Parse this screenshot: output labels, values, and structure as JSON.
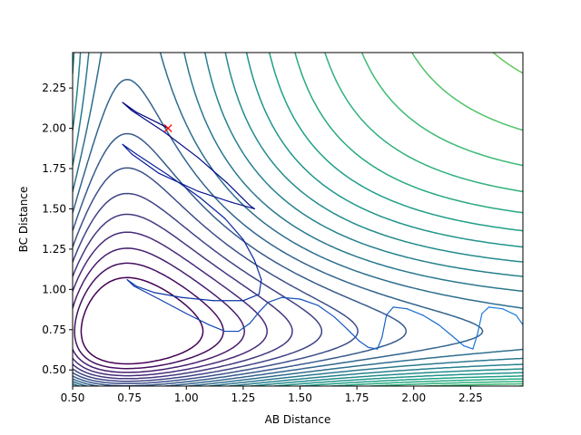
{
  "chart_data": {
    "type": "contour",
    "xlabel": "AB Distance",
    "ylabel": "BC Distance",
    "xlim": [
      0.5,
      2.48
    ],
    "ylim": [
      0.4,
      2.47
    ],
    "xticks": [
      0.5,
      0.75,
      1.0,
      1.25,
      1.5,
      1.75,
      2.0,
      2.25
    ],
    "xtick_labels": [
      "0.50",
      "0.75",
      "1.00",
      "1.25",
      "1.50",
      "1.75",
      "2.00",
      "2.25"
    ],
    "yticks": [
      0.5,
      0.75,
      1.0,
      1.25,
      1.5,
      1.75,
      2.0,
      2.25
    ],
    "ytick_labels": [
      "0.50",
      "0.75",
      "1.00",
      "1.25",
      "1.50",
      "1.75",
      "2.00",
      "2.25"
    ],
    "grid": false,
    "legend": "none",
    "colormap": "viridis",
    "contour_levels": 26,
    "potential_minimum": {
      "x": 0.74,
      "y": 0.74
    },
    "start_marker": {
      "x": 0.92,
      "y": 2.0,
      "symbol": "x",
      "color": "#ff0000"
    },
    "trajectory": {
      "color_start": "#00007f",
      "color_end": "#1e7fe0",
      "points": [
        [
          0.92,
          2.0
        ],
        [
          0.88,
          2.03
        ],
        [
          0.78,
          2.1
        ],
        [
          0.72,
          2.16
        ],
        [
          0.76,
          2.11
        ],
        [
          0.9,
          1.98
        ],
        [
          1.05,
          1.82
        ],
        [
          1.18,
          1.66
        ],
        [
          1.28,
          1.52
        ],
        [
          1.3,
          1.5
        ],
        [
          1.2,
          1.54
        ],
        [
          1.05,
          1.61
        ],
        [
          0.88,
          1.72
        ],
        [
          0.76,
          1.84
        ],
        [
          0.72,
          1.9
        ],
        [
          0.78,
          1.84
        ],
        [
          0.92,
          1.71
        ],
        [
          1.06,
          1.57
        ],
        [
          1.17,
          1.44
        ],
        [
          1.25,
          1.31
        ],
        [
          1.3,
          1.18
        ],
        [
          1.33,
          1.06
        ],
        [
          1.32,
          0.97
        ],
        [
          1.25,
          0.93
        ],
        [
          1.12,
          0.93
        ],
        [
          0.98,
          0.95
        ],
        [
          0.86,
          0.98
        ],
        [
          0.78,
          1.02
        ],
        [
          0.74,
          1.06
        ],
        [
          0.77,
          1.02
        ],
        [
          0.88,
          0.94
        ],
        [
          1.0,
          0.85
        ],
        [
          1.1,
          0.78
        ],
        [
          1.17,
          0.74
        ],
        [
          1.23,
          0.74
        ],
        [
          1.28,
          0.79
        ],
        [
          1.32,
          0.86
        ],
        [
          1.36,
          0.92
        ],
        [
          1.42,
          0.95
        ],
        [
          1.5,
          0.94
        ],
        [
          1.58,
          0.9
        ],
        [
          1.65,
          0.83
        ],
        [
          1.71,
          0.75
        ],
        [
          1.76,
          0.68
        ],
        [
          1.8,
          0.64
        ],
        [
          1.84,
          0.63
        ],
        [
          1.86,
          0.7
        ],
        [
          1.88,
          0.84
        ],
        [
          1.91,
          0.89
        ],
        [
          1.97,
          0.88
        ],
        [
          2.04,
          0.84
        ],
        [
          2.11,
          0.78
        ],
        [
          2.17,
          0.71
        ],
        [
          2.22,
          0.65
        ],
        [
          2.26,
          0.63
        ],
        [
          2.28,
          0.72
        ],
        [
          2.3,
          0.85
        ],
        [
          2.33,
          0.89
        ],
        [
          2.39,
          0.88
        ],
        [
          2.45,
          0.84
        ],
        [
          2.48,
          0.78
        ]
      ]
    }
  }
}
